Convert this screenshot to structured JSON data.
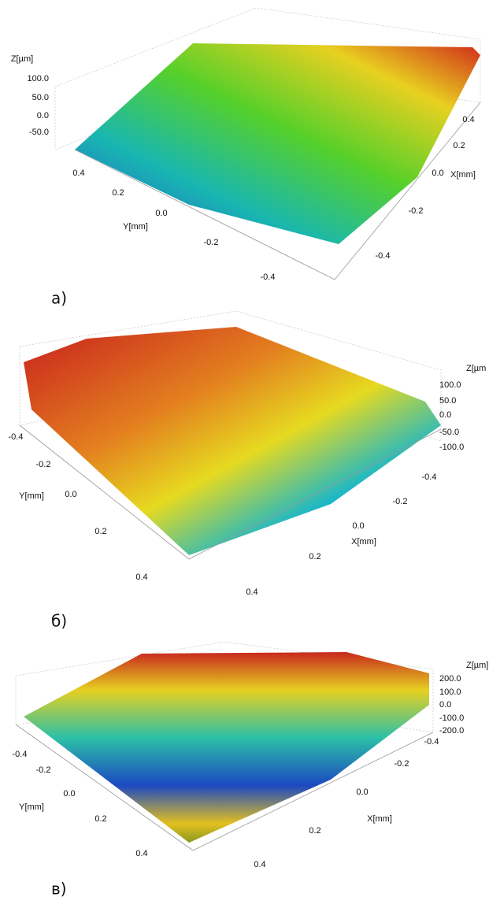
{
  "panels": [
    {
      "caption": "а)",
      "z_label": "Z[µm]",
      "z_ticks": [
        "100.0",
        "50.0",
        "0.0",
        "-50.0"
      ],
      "y_label": "Y[mm]",
      "y_ticks": [
        "0.4",
        "0.2",
        "0.0",
        "-0.2",
        "-0.4"
      ],
      "x_label": "X[mm]",
      "x_ticks": [
        "0.4",
        "0.2",
        "0.0",
        "-0.2",
        "-0.4"
      ]
    },
    {
      "caption": "б)",
      "z_label": "Z[µm",
      "z_ticks": [
        "100.0",
        "50.0",
        "0.0",
        "-50.0",
        "-100.0"
      ],
      "y_label": "Y[mm]",
      "y_ticks": [
        "-0.4",
        "-0.2",
        "0.0",
        "0.2",
        "0.4"
      ],
      "x_label": "X[mm]",
      "x_ticks": [
        "-0.4",
        "-0.2",
        "0.0",
        "0.2",
        "0.4"
      ]
    },
    {
      "caption": "в)",
      "z_label": "Z[µm]",
      "z_ticks": [
        "200.0",
        "100.0",
        "0.0",
        "-100.0",
        "-200.0"
      ],
      "y_label": "Y[mm]",
      "y_ticks": [
        "-0.4",
        "-0.2",
        "0.0",
        "0.2",
        "0.4"
      ],
      "x_label": "X[mm]",
      "x_ticks": [
        "-0.4",
        "-0.2",
        "0.0",
        "0.2",
        "0.4"
      ]
    }
  ]
}
